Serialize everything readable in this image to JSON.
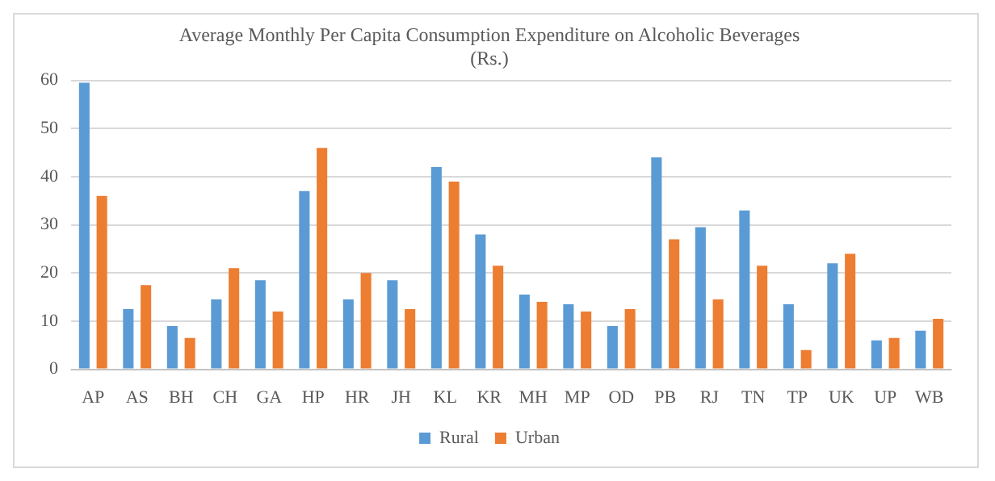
{
  "chart_data": {
    "type": "bar",
    "title": [
      "Average Monthly Per Capita Consumption Expenditure on Alcoholic Beverages",
      "(Rs.)"
    ],
    "categories": [
      "AP",
      "AS",
      "BH",
      "CH",
      "GA",
      "HP",
      "HR",
      "JH",
      "KL",
      "KR",
      "MH",
      "MP",
      "OD",
      "PB",
      "RJ",
      "TN",
      "TP",
      "UK",
      "UP",
      "WB"
    ],
    "series": [
      {
        "name": "Rural",
        "color": "#5b9bd5",
        "values": [
          59.5,
          12.5,
          9,
          14.5,
          18.5,
          37,
          14.5,
          18.5,
          42,
          28,
          15.5,
          13.5,
          9,
          44,
          29.5,
          33,
          13.5,
          22,
          6,
          8
        ]
      },
      {
        "name": "Urban",
        "color": "#ed7d31",
        "values": [
          36,
          17.5,
          6.5,
          21,
          12,
          46,
          20,
          12.5,
          39,
          21.5,
          14,
          12,
          12.5,
          27,
          14.5,
          21.5,
          4,
          24,
          6.5,
          10.5
        ]
      }
    ],
    "ylim": [
      0,
      60
    ],
    "yticks": [
      0,
      10,
      20,
      30,
      40,
      50,
      60
    ],
    "grid": "y",
    "legend": "bottom"
  }
}
